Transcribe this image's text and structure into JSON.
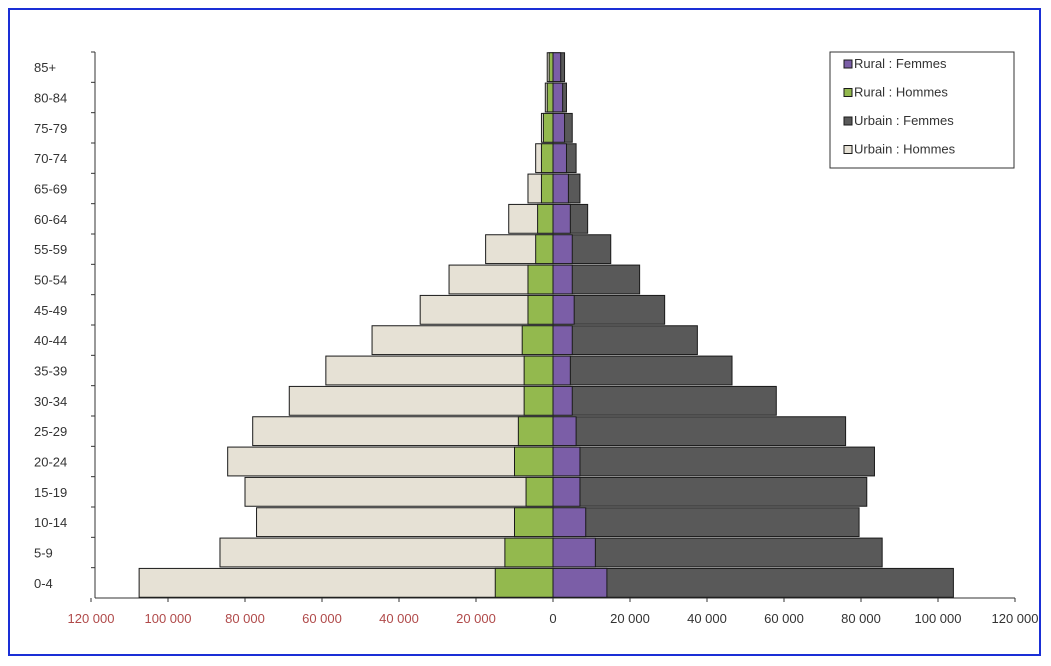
{
  "chart_data": {
    "type": "bar",
    "orientation": "horizontal-pyramid",
    "categories": [
      "0-4",
      "5-9",
      "10-14",
      "15-19",
      "20-24",
      "25-29",
      "30-34",
      "35-39",
      "40-44",
      "45-49",
      "50-54",
      "55-59",
      "60-64",
      "65-69",
      "70-74",
      "75-79",
      "80-84",
      "85+"
    ],
    "series": [
      {
        "name": "Rural : Femmes",
        "side": "right",
        "color": "#7b5ea7",
        "values": [
          14000,
          11000,
          8500,
          7000,
          7000,
          6000,
          5000,
          4500,
          5000,
          5500,
          5000,
          5000,
          4500,
          4000,
          3500,
          3000,
          2500,
          2000
        ]
      },
      {
        "name": "Rural : Hommes",
        "side": "left",
        "color": "#93b94e",
        "values": [
          15000,
          12500,
          10000,
          7000,
          10000,
          9000,
          7500,
          7500,
          8000,
          6500,
          6500,
          4500,
          4000,
          3000,
          3000,
          2500,
          1500,
          1000
        ]
      },
      {
        "name": "Urbain :  Femmes",
        "side": "right",
        "color": "#595959",
        "values": [
          104000,
          85500,
          79500,
          81500,
          83500,
          76000,
          58000,
          46500,
          37500,
          29000,
          22500,
          15000,
          9000,
          7000,
          6000,
          5000,
          3500,
          3000
        ]
      },
      {
        "name": "Urbain :  Hommes",
        "side": "left",
        "color": "#e6e1d5",
        "values": [
          107500,
          86500,
          77000,
          80000,
          84500,
          78000,
          68500,
          59000,
          47000,
          34500,
          27000,
          17500,
          11500,
          6500,
          4500,
          3000,
          2000,
          1500
        ]
      }
    ],
    "x_ticks_left": [
      "120 000",
      "100 000",
      "80 000",
      "60 000",
      "40 000",
      "20 000"
    ],
    "x_ticks_right": [
      "0",
      "20 000",
      "40 000",
      "60 000",
      "80 000",
      "100 000",
      "120 000"
    ],
    "xlim": [
      -120000,
      120000
    ],
    "left_tick_color": "#b04a4a",
    "right_tick_color": "#333333",
    "legend": {
      "position": "top-right",
      "entries": [
        "Rural : Femmes",
        "Rural : Hommes",
        "Urbain :  Femmes",
        "Urbain :  Hommes"
      ]
    },
    "grid": false,
    "frame_color": "#1a2fd6"
  }
}
